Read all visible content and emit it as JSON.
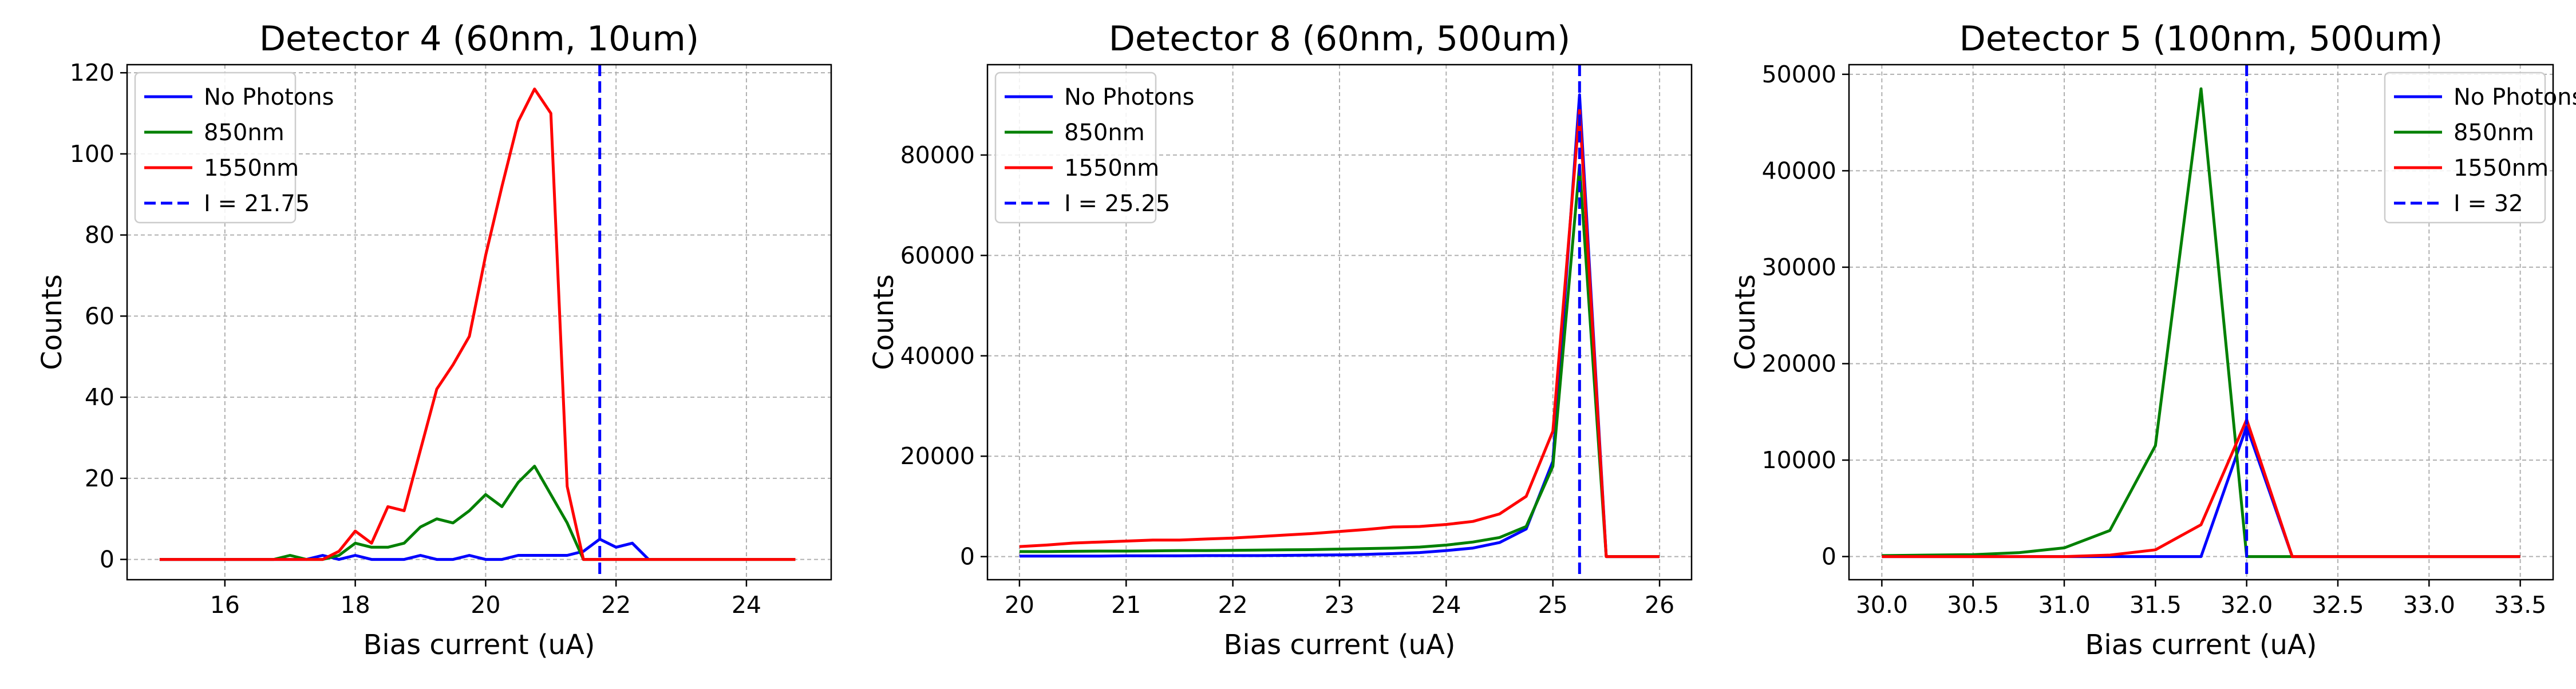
{
  "figure": {
    "series_colors": {
      "No Photons": "#0000ff",
      "850nm": "#008000",
      "1550nm": "#ff0000",
      "marker": "#0000ff"
    },
    "grid": true
  },
  "chart_data": [
    {
      "type": "line",
      "title": "Detector 4 (60nm, 10um)",
      "xlabel": "Bias current (uA)",
      "ylabel": "Counts",
      "xlim": [
        14.5,
        25.3
      ],
      "ylim": [
        -5,
        122
      ],
      "xticks": [
        16,
        18,
        20,
        22,
        24
      ],
      "yticks": [
        0,
        20,
        40,
        60,
        80,
        100,
        120
      ],
      "legend_position": "upper left",
      "vline": {
        "x": 21.75,
        "label": "I = 21.75"
      },
      "series": [
        {
          "name": "No Photons",
          "x": [
            15,
            15.25,
            15.5,
            15.75,
            16,
            16.25,
            16.5,
            16.75,
            17,
            17.25,
            17.5,
            17.75,
            18,
            18.25,
            18.5,
            18.75,
            19,
            19.25,
            19.5,
            19.75,
            20,
            20.25,
            20.5,
            20.75,
            21,
            21.25,
            21.5,
            21.75,
            22,
            22.25,
            22.5
          ],
          "y": [
            0,
            0,
            0,
            0,
            0,
            0,
            0,
            0,
            0,
            0,
            1,
            0,
            1,
            0,
            0,
            0,
            1,
            0,
            0,
            1,
            0,
            0,
            1,
            1,
            1,
            1,
            2,
            5,
            3,
            4,
            0
          ]
        },
        {
          "name": "850nm",
          "x": [
            15,
            15.25,
            15.5,
            15.75,
            16,
            16.25,
            16.5,
            16.75,
            17,
            17.25,
            17.5,
            17.75,
            18,
            18.25,
            18.5,
            18.75,
            19,
            19.25,
            19.5,
            19.75,
            20,
            20.25,
            20.5,
            20.75,
            21,
            21.25,
            21.5,
            21.75,
            22,
            22.25,
            22.5,
            22.75,
            23,
            23.25,
            23.5,
            23.75,
            24,
            24.25,
            24.5,
            24.75
          ],
          "y": [
            0,
            0,
            0,
            0,
            0,
            0,
            0,
            0,
            1,
            0,
            0,
            1,
            4,
            3,
            3,
            4,
            8,
            10,
            9,
            12,
            16,
            13,
            19,
            23,
            16,
            9,
            0,
            0,
            0,
            0,
            0,
            0,
            0,
            0,
            0,
            0,
            0,
            0,
            0,
            0
          ]
        },
        {
          "name": "1550nm",
          "x": [
            15,
            15.25,
            15.5,
            15.75,
            16,
            16.25,
            16.5,
            16.75,
            17,
            17.25,
            17.5,
            17.75,
            18,
            18.25,
            18.5,
            18.75,
            19,
            19.25,
            19.5,
            19.75,
            20,
            20.25,
            20.5,
            20.75,
            21,
            21.25,
            21.5,
            21.75,
            22,
            22.25,
            22.5,
            22.75,
            23,
            23.25,
            23.5,
            23.75,
            24,
            24.25,
            24.5,
            24.75
          ],
          "y": [
            0,
            0,
            0,
            0,
            0,
            0,
            0,
            0,
            0,
            0,
            0,
            2,
            7,
            4,
            13,
            12,
            27,
            42,
            48,
            55,
            75,
            92,
            108,
            116,
            110,
            18,
            0,
            0,
            0,
            0,
            0,
            0,
            0,
            0,
            0,
            0,
            0,
            0,
            0,
            0
          ]
        }
      ]
    },
    {
      "type": "line",
      "title": "Detector 8 (60nm, 500um)",
      "xlabel": "Bias current (uA)",
      "ylabel": "Counts",
      "xlim": [
        19.7,
        26.3
      ],
      "ylim": [
        -4600,
        98000
      ],
      "xticks": [
        20,
        21,
        22,
        23,
        24,
        25,
        26
      ],
      "yticks": [
        0,
        20000,
        40000,
        60000,
        80000
      ],
      "legend_position": "upper left",
      "vline": {
        "x": 25.25,
        "label": "I = 25.25"
      },
      "series": [
        {
          "name": "No Photons",
          "x": [
            20,
            20.25,
            20.5,
            20.75,
            21,
            21.25,
            21.5,
            21.75,
            22,
            22.25,
            22.5,
            22.75,
            23,
            23.25,
            23.5,
            23.75,
            24,
            24.25,
            24.5,
            24.75,
            25,
            25.25,
            25.5,
            25.75,
            26
          ],
          "y": [
            100,
            100,
            100,
            100,
            150,
            150,
            150,
            200,
            200,
            200,
            250,
            300,
            350,
            450,
            600,
            800,
            1200,
            1700,
            2800,
            5500,
            19000,
            92000,
            0,
            0,
            0
          ]
        },
        {
          "name": "850nm",
          "x": [
            20,
            20.25,
            20.5,
            20.75,
            21,
            21.25,
            21.5,
            21.75,
            22,
            22.25,
            22.5,
            22.75,
            23,
            23.25,
            23.5,
            23.75,
            24,
            24.25,
            24.5,
            24.75,
            25,
            25.25,
            25.5,
            25.75,
            26
          ],
          "y": [
            1000,
            1000,
            1050,
            1100,
            1100,
            1150,
            1200,
            1200,
            1250,
            1300,
            1350,
            1400,
            1500,
            1600,
            1700,
            1900,
            2300,
            2900,
            3800,
            6000,
            18000,
            78000,
            0,
            0,
            0
          ]
        },
        {
          "name": "1550nm",
          "x": [
            20,
            20.25,
            20.5,
            20.75,
            21,
            21.25,
            21.5,
            21.75,
            22,
            22.25,
            22.5,
            22.75,
            23,
            23.25,
            23.5,
            23.75,
            24,
            24.25,
            24.5,
            24.75,
            25,
            25.25,
            25.5,
            25.75,
            26
          ],
          "y": [
            2000,
            2300,
            2700,
            2900,
            3100,
            3300,
            3300,
            3500,
            3700,
            4000,
            4300,
            4600,
            5000,
            5400,
            5900,
            6000,
            6400,
            7000,
            8500,
            12000,
            25000,
            89000,
            0,
            0,
            0
          ]
        }
      ]
    },
    {
      "type": "line",
      "title": "Detector 5 (100nm, 500um)",
      "xlabel": "Bias current (uA)",
      "ylabel": "Counts",
      "xlim": [
        29.82,
        33.68
      ],
      "ylim": [
        -2400,
        51000
      ],
      "xticks": [
        30.0,
        30.5,
        31.0,
        31.5,
        32.0,
        32.5,
        33.0,
        33.5
      ],
      "yticks": [
        0,
        10000,
        20000,
        30000,
        40000,
        50000
      ],
      "legend_position": "upper right",
      "vline": {
        "x": 32,
        "label": "I = 32"
      },
      "series": [
        {
          "name": "No Photons",
          "x": [
            30,
            30.25,
            30.5,
            30.75,
            31,
            31.25,
            31.5,
            31.75,
            32,
            32.25,
            32.5,
            32.75,
            33,
            33.25,
            33.5
          ],
          "y": [
            0,
            0,
            0,
            0,
            0,
            0,
            0,
            0,
            13500,
            0,
            0,
            0,
            0,
            0,
            0
          ]
        },
        {
          "name": "850nm",
          "x": [
            30,
            30.25,
            30.5,
            30.75,
            31,
            31.25,
            31.5,
            31.75,
            32,
            32.25,
            32.5,
            32.75,
            33,
            33.25,
            33.5
          ],
          "y": [
            100,
            150,
            200,
            400,
            900,
            2700,
            11500,
            48500,
            0,
            0,
            0,
            0,
            0,
            0,
            0
          ]
        },
        {
          "name": "1550nm",
          "x": [
            30,
            30.25,
            30.5,
            30.75,
            31,
            31.25,
            31.5,
            31.75,
            32,
            32.25,
            32.5,
            32.75,
            33,
            33.25,
            33.5
          ],
          "y": [
            0,
            0,
            0,
            0,
            0,
            150,
            700,
            3300,
            14200,
            0,
            0,
            0,
            0,
            0,
            0
          ]
        }
      ]
    }
  ]
}
